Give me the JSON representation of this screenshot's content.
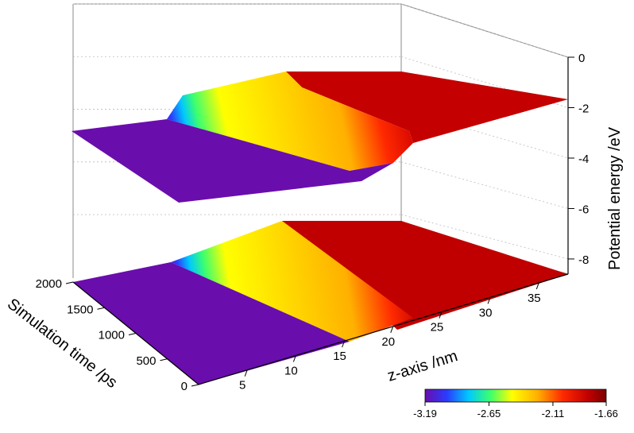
{
  "chart_data": {
    "type": "surface3d",
    "title": "",
    "xlabel": "z-axis /nm",
    "ylabel": "Simulation time /ps",
    "zlabel": "Potential energy /eV",
    "x_ticks": [
      "5",
      "10",
      "15",
      "20",
      "25",
      "30",
      "35"
    ],
    "y_ticks": [
      "0",
      "500",
      "1000",
      "1500",
      "2000"
    ],
    "z_ticks": [
      "0",
      "-2",
      "-4",
      "-6",
      "-8"
    ],
    "xlim": [
      0,
      38
    ],
    "ylim": [
      0,
      2000
    ],
    "zlim": [
      -8.6,
      0
    ],
    "colorbar": {
      "ticks": [
        "-3.19",
        "-2.65",
        "-2.11",
        "-1.66"
      ],
      "range": [
        -3.19,
        -1.66
      ],
      "colors": [
        "#6a0dad",
        "#2a3cff",
        "#00c8ff",
        "#3cff6e",
        "#ffff00",
        "#ffb000",
        "#ff2a00",
        "#c00000",
        "#7a0000"
      ]
    },
    "surface_profile": {
      "description_units": "z in nm, potential in eV",
      "low_plateau": -3.19,
      "high_plateau": -1.66,
      "front_edge_at_t0": [
        15,
        21
      ],
      "front_edge_at_t2000": [
        11,
        15
      ]
    }
  }
}
